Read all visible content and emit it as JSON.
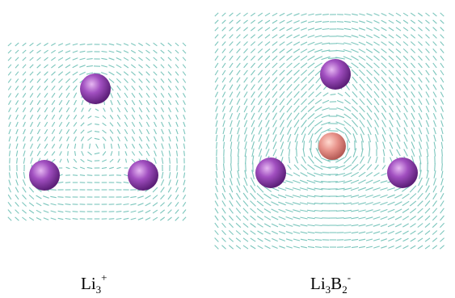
{
  "panels": [
    {
      "label": [
        {
          "text": "Li"
        },
        {
          "sub": "3"
        },
        {
          "sup": "+"
        }
      ]
    },
    {
      "label": [
        {
          "text": "Li"
        },
        {
          "sub": "3"
        },
        {
          "text": "B"
        },
        {
          "sub": "2"
        },
        {
          "sup": "-"
        }
      ]
    }
  ]
}
